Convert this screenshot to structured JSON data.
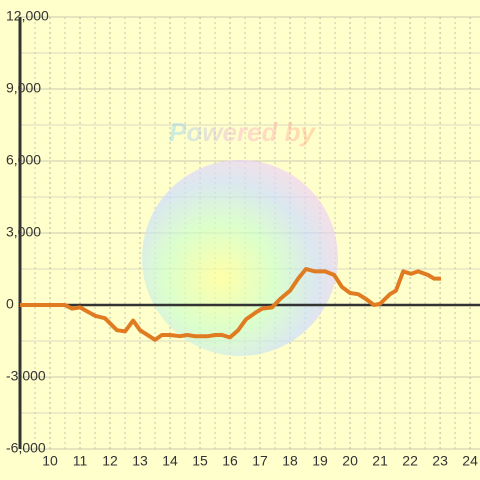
{
  "chart_data": {
    "type": "line",
    "watermark": "Powered by",
    "x": [
      9,
      10.5,
      10.73,
      11,
      11.5,
      11.83,
      12.23,
      12.5,
      12.77,
      13,
      13.5,
      13.73,
      14,
      14.33,
      14.57,
      14.83,
      15.27,
      15.5,
      15.73,
      16,
      16.27,
      16.53,
      16.87,
      17.07,
      17.4,
      17.67,
      18,
      18.27,
      18.53,
      18.83,
      19.17,
      19.47,
      19.73,
      20,
      20.27,
      20.53,
      20.8,
      21,
      21.33,
      21.53,
      21.77,
      22.03,
      22.27,
      22.6,
      22.8,
      23.03
    ],
    "series": [
      {
        "color": "#e07b22",
        "values": [
          0,
          0,
          -150,
          -100,
          -450,
          -550,
          -1050,
          -1100,
          -650,
          -1050,
          -1450,
          -1250,
          -1250,
          -1300,
          -1250,
          -1300,
          -1300,
          -1250,
          -1250,
          -1350,
          -1050,
          -600,
          -300,
          -150,
          -100,
          250,
          600,
          1100,
          1500,
          1400,
          1400,
          1250,
          750,
          500,
          450,
          250,
          0,
          50,
          450,
          600,
          1400,
          1300,
          1400,
          1250,
          1100,
          1100
        ]
      }
    ],
    "xlim": [
      9,
      24.33
    ],
    "xticks": [
      10,
      11,
      12,
      13,
      14,
      15,
      16,
      17,
      18,
      19,
      20,
      21,
      22,
      23,
      24
    ],
    "ylim": [
      -6000,
      12000
    ],
    "yticks": [
      {
        "value": -6000,
        "label": "-6,000"
      },
      {
        "value": -3000,
        "label": "-3,000"
      },
      0,
      {
        "value": 3000,
        "label": "3,000"
      },
      {
        "value": 6000,
        "label": "6,000"
      },
      {
        "value": 9000,
        "label": "9,000"
      },
      {
        "value": 12000,
        "label": "12,000"
      }
    ],
    "grid": true
  }
}
